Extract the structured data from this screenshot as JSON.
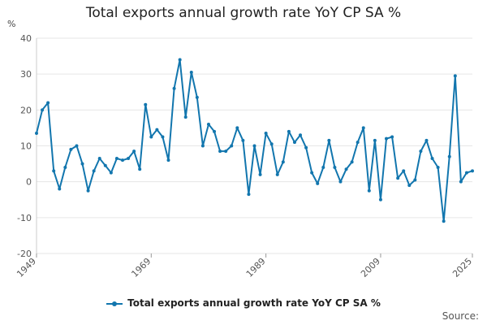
{
  "chart_data": {
    "type": "line",
    "title": "Total exports annual growth rate YoY CP SA %",
    "ylabel": "%",
    "xlabel": "",
    "ylim": [
      -20,
      40
    ],
    "yticks": [
      40,
      30,
      20,
      10,
      0,
      -10,
      -20
    ],
    "xlim": [
      1949,
      2025
    ],
    "xticks": [
      "1949",
      "1969",
      "1989",
      "2009",
      "2025"
    ],
    "grid": true,
    "legend_position": "bottom",
    "series": [
      {
        "name": "Total exports annual growth rate YoY CP SA %",
        "color": "#1276ae",
        "x": [
          1949,
          1950,
          1951,
          1952,
          1953,
          1954,
          1955,
          1956,
          1957,
          1958,
          1959,
          1960,
          1961,
          1962,
          1963,
          1964,
          1965,
          1966,
          1967,
          1968,
          1969,
          1970,
          1971,
          1972,
          1973,
          1974,
          1975,
          1976,
          1977,
          1978,
          1979,
          1980,
          1981,
          1982,
          1983,
          1984,
          1985,
          1986,
          1987,
          1988,
          1989,
          1990,
          1991,
          1992,
          1993,
          1994,
          1995,
          1996,
          1997,
          1998,
          1999,
          2000,
          2001,
          2002,
          2003,
          2004,
          2005,
          2006,
          2007,
          2008,
          2009,
          2010,
          2011,
          2012,
          2013,
          2014,
          2015,
          2016,
          2017,
          2018,
          2019,
          2020,
          2021,
          2022,
          2023,
          2024,
          2025
        ],
        "values": [
          13.5,
          20,
          22,
          3,
          -2,
          4,
          9,
          10,
          5,
          -2.5,
          3,
          6.5,
          4.5,
          2.5,
          6.5,
          6,
          6.5,
          8.5,
          3.5,
          21.5,
          12.5,
          14.5,
          12.5,
          6,
          26,
          34,
          18,
          30.5,
          23.5,
          10,
          16,
          14,
          8.5,
          8.5,
          10,
          15,
          11.5,
          -3.5,
          10,
          2,
          13.5,
          10.5,
          2,
          5.5,
          14,
          11,
          13,
          9.5,
          2.5,
          -0.5,
          4,
          11.5,
          4,
          0,
          3.5,
          5.5,
          11,
          15,
          -2.5,
          11.5,
          -5,
          12,
          12.5,
          1,
          3,
          -1,
          0.5,
          8.5,
          11.5,
          6.5,
          4,
          -11,
          7,
          29.5,
          0,
          2.5,
          3
        ]
      }
    ]
  },
  "legend": {
    "label": "Total exports annual growth rate YoY CP SA %"
  },
  "source": {
    "label": "Source:"
  }
}
